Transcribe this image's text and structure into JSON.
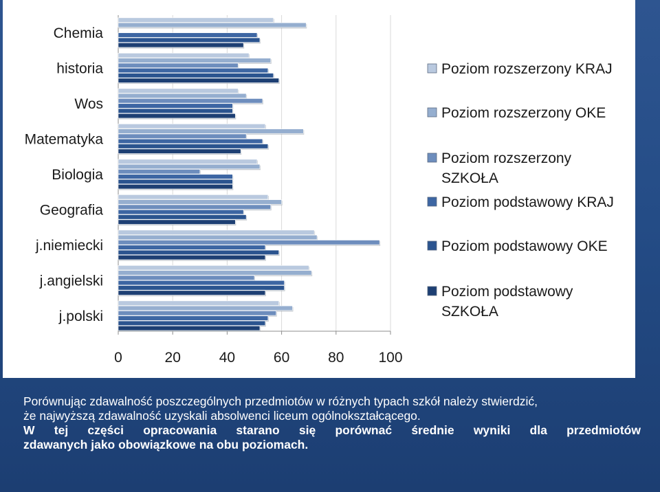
{
  "caption": {
    "line1": "Porównując zdawalność poszczególnych przedmiotów w różnych typach szkół należy stwierdzić,",
    "line2": "że najwyższą zdawalność  uzyskali absolwenci liceum ogólnokształcącego.",
    "line3": "W tej części opracowania starano się porównać średnie wyniki dla przedmiotów",
    "line4": "zdawanych jako obowiązkowe na obu poziomach."
  },
  "colors": {
    "slide_background": "#244c86",
    "chart_background": "#ffffff",
    "caption_text": "#ffffff"
  },
  "chart_data": {
    "type": "bar",
    "orientation": "horizontal",
    "categories": [
      "Chemia",
      "historia",
      "Wos",
      "Matematyka",
      "Biologia",
      "Geografia",
      "j.niemiecki",
      "j.angielski",
      "j.polski"
    ],
    "xlim": [
      0,
      100
    ],
    "xticks": [
      0,
      20,
      40,
      60,
      80,
      100
    ],
    "grid": "vertical",
    "legend_position": "right",
    "series": [
      {
        "name": "Poziom rozszerzony KRAJ",
        "color": "#b9c9df",
        "values": [
          57,
          48,
          44,
          54,
          51,
          55,
          72,
          70,
          59
        ]
      },
      {
        "name": "Poziom rozszerzony OKE",
        "color": "#95aecf",
        "values": [
          69,
          56,
          47,
          68,
          52,
          60,
          73,
          71,
          64
        ]
      },
      {
        "name": "Poziom rozszerzony SZKOŁA",
        "color": "#6d8dbd",
        "values": [
          0,
          44,
          53,
          47,
          30,
          56,
          96,
          50,
          58
        ]
      },
      {
        "name": "Poziom podstawowy KRAJ",
        "color": "#3d66a3",
        "values": [
          51,
          55,
          42,
          53,
          42,
          46,
          54,
          61,
          55
        ]
      },
      {
        "name": "Poziom podstawowy OKE",
        "color": "#2b548f",
        "values": [
          52,
          57,
          42,
          55,
          42,
          47,
          59,
          61,
          54
        ]
      },
      {
        "name": "Poziom podstawowy SZKOŁA",
        "color": "#1d3f73",
        "values": [
          46,
          59,
          43,
          45,
          42,
          43,
          54,
          54,
          52
        ]
      }
    ]
  }
}
